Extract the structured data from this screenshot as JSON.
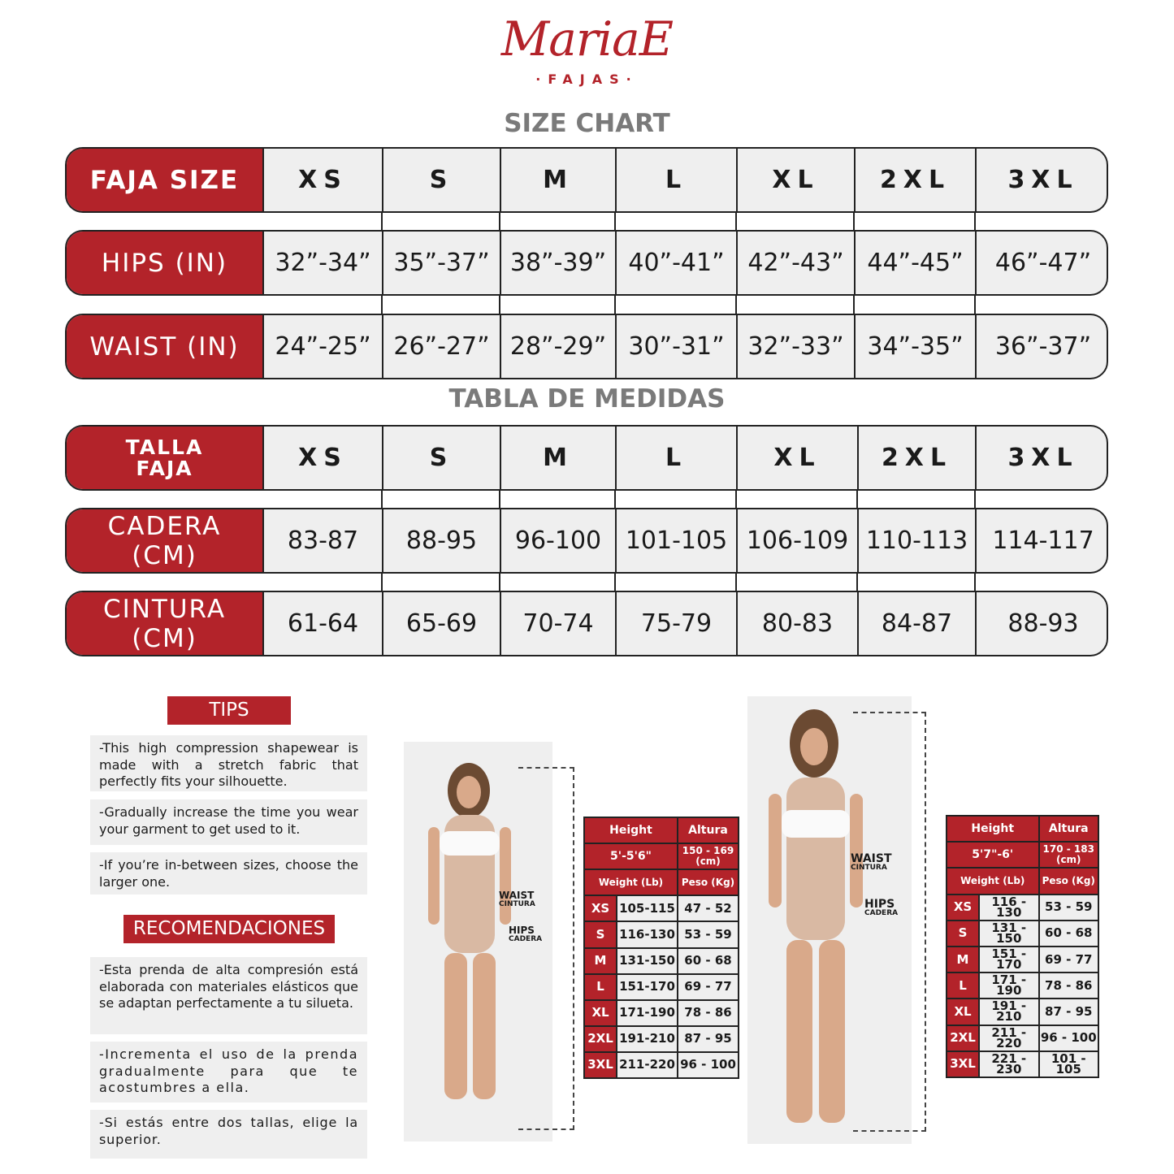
{
  "logo": {
    "brand": "MariaE",
    "sub": "·FAJAS·"
  },
  "size_chart": {
    "title": "SIZE CHART",
    "rows": [
      {
        "label": "FAJA SIZE",
        "values": [
          "XS",
          "S",
          "M",
          "L",
          "XL",
          "2XL",
          "3XL"
        ]
      },
      {
        "label": "HIPS (IN)",
        "values": [
          "32”-34”",
          "35”-37”",
          "38”-39”",
          "40”-41”",
          "42”-43”",
          "44”-45”",
          "46”-47”"
        ]
      },
      {
        "label": "WAIST (IN)",
        "values": [
          "24”-25”",
          "26”-27”",
          "28”-29”",
          "30”-31”",
          "32”-33”",
          "34”-35”",
          "36”-37”"
        ]
      }
    ]
  },
  "tabla_medidas": {
    "title": "TABLA DE MEDIDAS",
    "rows": [
      {
        "label": "TALLA FAJA",
        "values": [
          "XS",
          "S",
          "M",
          "L",
          "XL",
          "2XL",
          "3XL"
        ]
      },
      {
        "label": "CADERA (CM)",
        "values": [
          "83-87",
          "88-95",
          "96-100",
          "101-105",
          "106-109",
          "110-113",
          "114-117"
        ]
      },
      {
        "label": "CINTURA (CM)",
        "values": [
          "61-64",
          "65-69",
          "70-74",
          "75-79",
          "80-83",
          "84-87",
          "88-93"
        ]
      }
    ]
  },
  "tips": {
    "title": "TIPS",
    "items": [
      "-This high compression shapewear is made with a stretch fabric that perfectly fits your silhouette.",
      "-Gradually increase the time you wear your garment to get used to it.",
      "-If you’re in-between sizes, choose the larger one."
    ]
  },
  "recomendaciones": {
    "title": "RECOMENDACIONES",
    "items": [
      "-Esta prenda de alta compresión está elaborada con materiales elásticos que se adaptan perfectamente a tu silueta.",
      "-Incrementa el uso de la prenda gradualmente para que te acostumbres a ella.",
      "-Si estás entre dos tallas, elige la superior."
    ]
  },
  "figure_labels": {
    "waist": "WAIST",
    "cintura": "CINTURA",
    "hips": "HIPS",
    "cadera": "CADERA"
  },
  "height_tables": [
    {
      "height_label": "Height",
      "altura_label": "Altura",
      "height": "5'-5'6\"",
      "altura": "150 - 169 (cm)",
      "weight_label": "Weight (Lb)",
      "peso_label": "Peso (Kg)",
      "rows": [
        [
          "XS",
          "105-115",
          "47 - 52"
        ],
        [
          "S",
          "116-130",
          "53 - 59"
        ],
        [
          "M",
          "131-150",
          "60 - 68"
        ],
        [
          "L",
          "151-170",
          "69 - 77"
        ],
        [
          "XL",
          "171-190",
          "78 - 86"
        ],
        [
          "2XL",
          "191-210",
          "87 - 95"
        ],
        [
          "3XL",
          "211-220",
          "96 - 100"
        ]
      ]
    },
    {
      "height_label": "Height",
      "altura_label": "Altura",
      "height": "5'7\"-6'",
      "altura": "170 - 183 (cm)",
      "weight_label": "Weight (Lb)",
      "peso_label": "Peso (Kg)",
      "rows": [
        [
          "XS",
          "116 - 130",
          "53 - 59"
        ],
        [
          "S",
          "131 - 150",
          "60 - 68"
        ],
        [
          "M",
          "151 - 170",
          "69 - 77"
        ],
        [
          "L",
          "171 - 190",
          "78 - 86"
        ],
        [
          "XL",
          "191 - 210",
          "87 - 95"
        ],
        [
          "2XL",
          "211 - 220",
          "96 - 100"
        ],
        [
          "3XL",
          "221 - 230",
          "101 - 105"
        ]
      ]
    }
  ],
  "colors": {
    "brand_red": "#b3232a",
    "cell_gray": "#efefef",
    "heading_gray": "#7a7a7a"
  }
}
